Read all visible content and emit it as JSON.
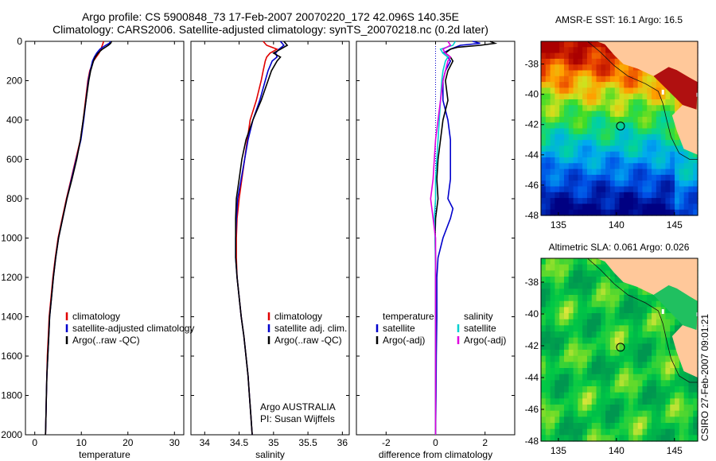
{
  "header": {
    "line1": "Argo profile: CS 5900848_73 17-Feb-2007 20070220_172 42.096S 140.35E",
    "line2": "Climatology: CARS2006. Satellite-adjusted climatology: synTS_20070218.nc (0.2d later)"
  },
  "side_stamp": "CSIRO 27-Feb-2007 09:01:21",
  "colors": {
    "climatology": "#e00000",
    "satellite": "#0000cc",
    "argo": "#000000",
    "satellite_diff": "#00d0d0",
    "argo_diff": "#e000e0"
  },
  "chart_data": [
    {
      "type": "line",
      "id": "temperature",
      "xlabel": "temperature",
      "xlim": [
        -2,
        32
      ],
      "ylim": [
        2000,
        0
      ],
      "xticks": [
        0,
        10,
        20,
        30
      ],
      "yticks": [
        0,
        200,
        400,
        600,
        800,
        1000,
        1200,
        1400,
        1600,
        1800,
        2000
      ],
      "legend": [
        "climatology",
        "satellite-adjusted climatology",
        "Argo(..raw -QC)"
      ],
      "series": [
        {
          "name": "climatology",
          "color": "#e00000",
          "depth": [
            0,
            20,
            40,
            60,
            80,
            100,
            150,
            200,
            300,
            400,
            500,
            600,
            700,
            800,
            900,
            1000,
            1100,
            1200,
            1300,
            1400,
            1500,
            1600,
            1700,
            1800,
            1900,
            2000
          ],
          "values": [
            14.8,
            14.5,
            14.2,
            13.8,
            13.2,
            12.6,
            11.8,
            11.4,
            10.9,
            10.4,
            9.8,
            8.8,
            7.8,
            6.8,
            5.9,
            5.0,
            4.4,
            3.9,
            3.5,
            3.1,
            2.9,
            2.7,
            2.6,
            2.5,
            2.4,
            2.3
          ]
        },
        {
          "name": "satellite-adjusted climatology",
          "color": "#0000cc",
          "depth": [
            0,
            10,
            20,
            40,
            60,
            80,
            100,
            150,
            200,
            300,
            400,
            500,
            600,
            700,
            800,
            900,
            1000,
            1100,
            1200,
            1300,
            1400,
            1500,
            1600,
            1700,
            1800,
            1900,
            2000
          ],
          "values": [
            16.3,
            16.0,
            15.2,
            14.0,
            13.3,
            12.8,
            12.4,
            11.9,
            11.5,
            11.0,
            10.5,
            9.9,
            8.9,
            7.9,
            6.9,
            6.0,
            5.1,
            4.5,
            4.0,
            3.6,
            3.2,
            3.0,
            2.8,
            2.6,
            2.5,
            2.4,
            2.3
          ]
        },
        {
          "name": "Argo(..raw -QC)",
          "color": "#000000",
          "depth": [
            0,
            10,
            20,
            40,
            60,
            80,
            100,
            150,
            200,
            300,
            400,
            500,
            600,
            700,
            800,
            900,
            1000,
            1100,
            1200,
            1300,
            1400,
            1500,
            1600,
            1700,
            1800,
            1900,
            2000
          ],
          "values": [
            16.5,
            16.3,
            15.8,
            14.5,
            13.6,
            13.0,
            12.6,
            12.0,
            11.6,
            11.0,
            10.4,
            9.8,
            9.0,
            8.0,
            6.9,
            6.0,
            5.1,
            4.5,
            4.0,
            3.6,
            3.2,
            3.0,
            2.8,
            2.6,
            2.5,
            2.4,
            2.3
          ]
        }
      ]
    },
    {
      "type": "line",
      "id": "salinity",
      "xlabel": "salinity",
      "xlim": [
        33.8,
        36.1
      ],
      "ylim": [
        2000,
        0
      ],
      "xticks": [
        34,
        34.5,
        35,
        35.5,
        36
      ],
      "legend": [
        "climatology",
        "satellite adj. clim.",
        "Argo(..raw -QC)"
      ],
      "annotation": [
        "Argo AUSTRALIA",
        "PI: Susan Wijffels"
      ],
      "series": [
        {
          "name": "climatology",
          "color": "#e00000",
          "depth": [
            0,
            20,
            40,
            60,
            80,
            100,
            150,
            200,
            300,
            400,
            500,
            600,
            700,
            800,
            900,
            1000,
            1100,
            1200,
            1300,
            1400,
            1500,
            1600,
            1700,
            1800,
            1900,
            2000
          ],
          "values": [
            34.85,
            34.9,
            35.05,
            34.95,
            34.9,
            34.88,
            34.85,
            34.82,
            34.75,
            34.66,
            34.62,
            34.58,
            34.54,
            34.5,
            34.47,
            34.46,
            34.46,
            34.47,
            34.5,
            34.53,
            34.57,
            34.6,
            34.63,
            34.65,
            34.67,
            34.69
          ]
        },
        {
          "name": "satellite adj. clim.",
          "color": "#0000cc",
          "depth": [
            0,
            20,
            40,
            60,
            80,
            100,
            150,
            200,
            300,
            400,
            500,
            600,
            700,
            800,
            900,
            1000,
            1100,
            1200,
            1300,
            1400,
            1500,
            1600,
            1700,
            1800,
            1900,
            2000
          ],
          "values": [
            35.1,
            35.15,
            35.08,
            35.03,
            35.05,
            34.98,
            34.92,
            34.88,
            34.8,
            34.7,
            34.63,
            34.58,
            34.53,
            34.48,
            34.46,
            34.45,
            34.45,
            34.47,
            34.5,
            34.53,
            34.57,
            34.6,
            34.63,
            34.65,
            34.67,
            34.69
          ]
        },
        {
          "name": "Argo(..raw -QC)",
          "color": "#000000",
          "depth": [
            0,
            20,
            40,
            60,
            80,
            100,
            150,
            200,
            300,
            400,
            500,
            600,
            700,
            800,
            900,
            1000,
            1100,
            1200,
            1300,
            1400,
            1500,
            1600,
            1700,
            1800,
            1900,
            2000
          ],
          "values": [
            35.15,
            35.2,
            35.1,
            35.0,
            35.1,
            35.05,
            34.97,
            34.92,
            34.82,
            34.7,
            34.6,
            34.54,
            34.5,
            34.46,
            34.45,
            34.45,
            34.45,
            34.47,
            34.5,
            34.53,
            34.57,
            34.6,
            34.63,
            34.65,
            34.67,
            34.69
          ]
        }
      ]
    },
    {
      "type": "line",
      "id": "difference",
      "xlabel": "difference from climatology",
      "xlim": [
        -3.2,
        3.2
      ],
      "ylim": [
        2000,
        0
      ],
      "xticks": [
        -2,
        0,
        2
      ],
      "legend_temperature": [
        "temperature",
        "satellite",
        "Argo(-adj)"
      ],
      "legend_salinity": [
        "salinity",
        "satellite",
        "Argo(-adj)"
      ],
      "series": [
        {
          "name": "temperature satellite",
          "color": "#0000cc",
          "depth": [
            0,
            10,
            20,
            40,
            60,
            80,
            100,
            150,
            200,
            300,
            400,
            500,
            600,
            700,
            800,
            850,
            900,
            1000,
            1100,
            1200,
            1400,
            1600,
            1800,
            2000
          ],
          "values": [
            1.5,
            1.8,
            1.0,
            0.6,
            0.3,
            0.5,
            0.6,
            0.4,
            0.3,
            0.3,
            0.5,
            0.6,
            0.6,
            0.6,
            0.5,
            0.7,
            0.6,
            0.3,
            0.1,
            0.05,
            0.05,
            0.03,
            0.02,
            0.0
          ]
        },
        {
          "name": "temperature Argo(-adj)",
          "color": "#000000",
          "depth": [
            0,
            10,
            20,
            30,
            40,
            60,
            80,
            100,
            150,
            200,
            300,
            400,
            500,
            600,
            700,
            800,
            900,
            1000,
            1100,
            1200,
            1400,
            1600,
            1800,
            2000
          ],
          "values": [
            2.2,
            2.4,
            1.8,
            0.9,
            0.6,
            0.4,
            0.6,
            0.7,
            0.5,
            0.4,
            0.5,
            0.3,
            0.2,
            0.1,
            0.05,
            0.1,
            0.0,
            -0.02,
            0.0,
            0.0,
            0.0,
            0.0,
            0.0,
            0.0
          ]
        },
        {
          "name": "salinity satellite",
          "color": "#00d0d0",
          "depth": [
            0,
            20,
            40,
            60,
            80,
            100,
            150,
            200,
            300,
            400,
            500,
            600,
            700,
            800,
            900,
            1000,
            1200,
            1400,
            1600,
            1800,
            2000
          ],
          "values": [
            0.8,
            0.7,
            0.2,
            0.3,
            0.5,
            0.4,
            0.3,
            0.25,
            0.2,
            0.15,
            0.1,
            0.05,
            0.0,
            0.0,
            -0.05,
            -0.02,
            0.0,
            0.0,
            0.0,
            0.0,
            0.0
          ]
        },
        {
          "name": "salinity Argo(-adj)",
          "color": "#e000e0",
          "depth": [
            0,
            20,
            40,
            60,
            80,
            100,
            150,
            200,
            300,
            400,
            500,
            600,
            700,
            800,
            900,
            1000,
            1100,
            1200,
            1400,
            1600,
            1800,
            2000
          ],
          "values": [
            0.5,
            0.6,
            0.3,
            0.4,
            0.6,
            0.5,
            0.4,
            0.3,
            0.2,
            0.1,
            0.0,
            -0.05,
            -0.1,
            -0.2,
            -0.1,
            0.0,
            0.0,
            0.0,
            0.0,
            0.0,
            0.0,
            0.0
          ]
        }
      ]
    },
    {
      "type": "heatmap",
      "id": "amsr_sst",
      "title": "AMSR-E SST: 16.1 Argo: 16.5",
      "xlim": [
        133.5,
        147
      ],
      "ylim": [
        -48,
        -36.5
      ],
      "xticks": [
        135,
        140,
        145
      ],
      "yticks": [
        -38,
        -40,
        -42,
        -44,
        -46,
        -48
      ],
      "marker": {
        "lon": 140.35,
        "lat": -42.096
      }
    },
    {
      "type": "heatmap",
      "id": "altimetric_sla",
      "title": "Altimetric SLA: 0.061 Argo: 0.026",
      "xlim": [
        133.5,
        147
      ],
      "ylim": [
        -48,
        -36.5
      ],
      "xticks": [
        135,
        140,
        145
      ],
      "yticks": [
        -38,
        -40,
        -42,
        -44,
        -46,
        -48
      ],
      "marker": {
        "lon": 140.35,
        "lat": -42.096
      }
    }
  ]
}
